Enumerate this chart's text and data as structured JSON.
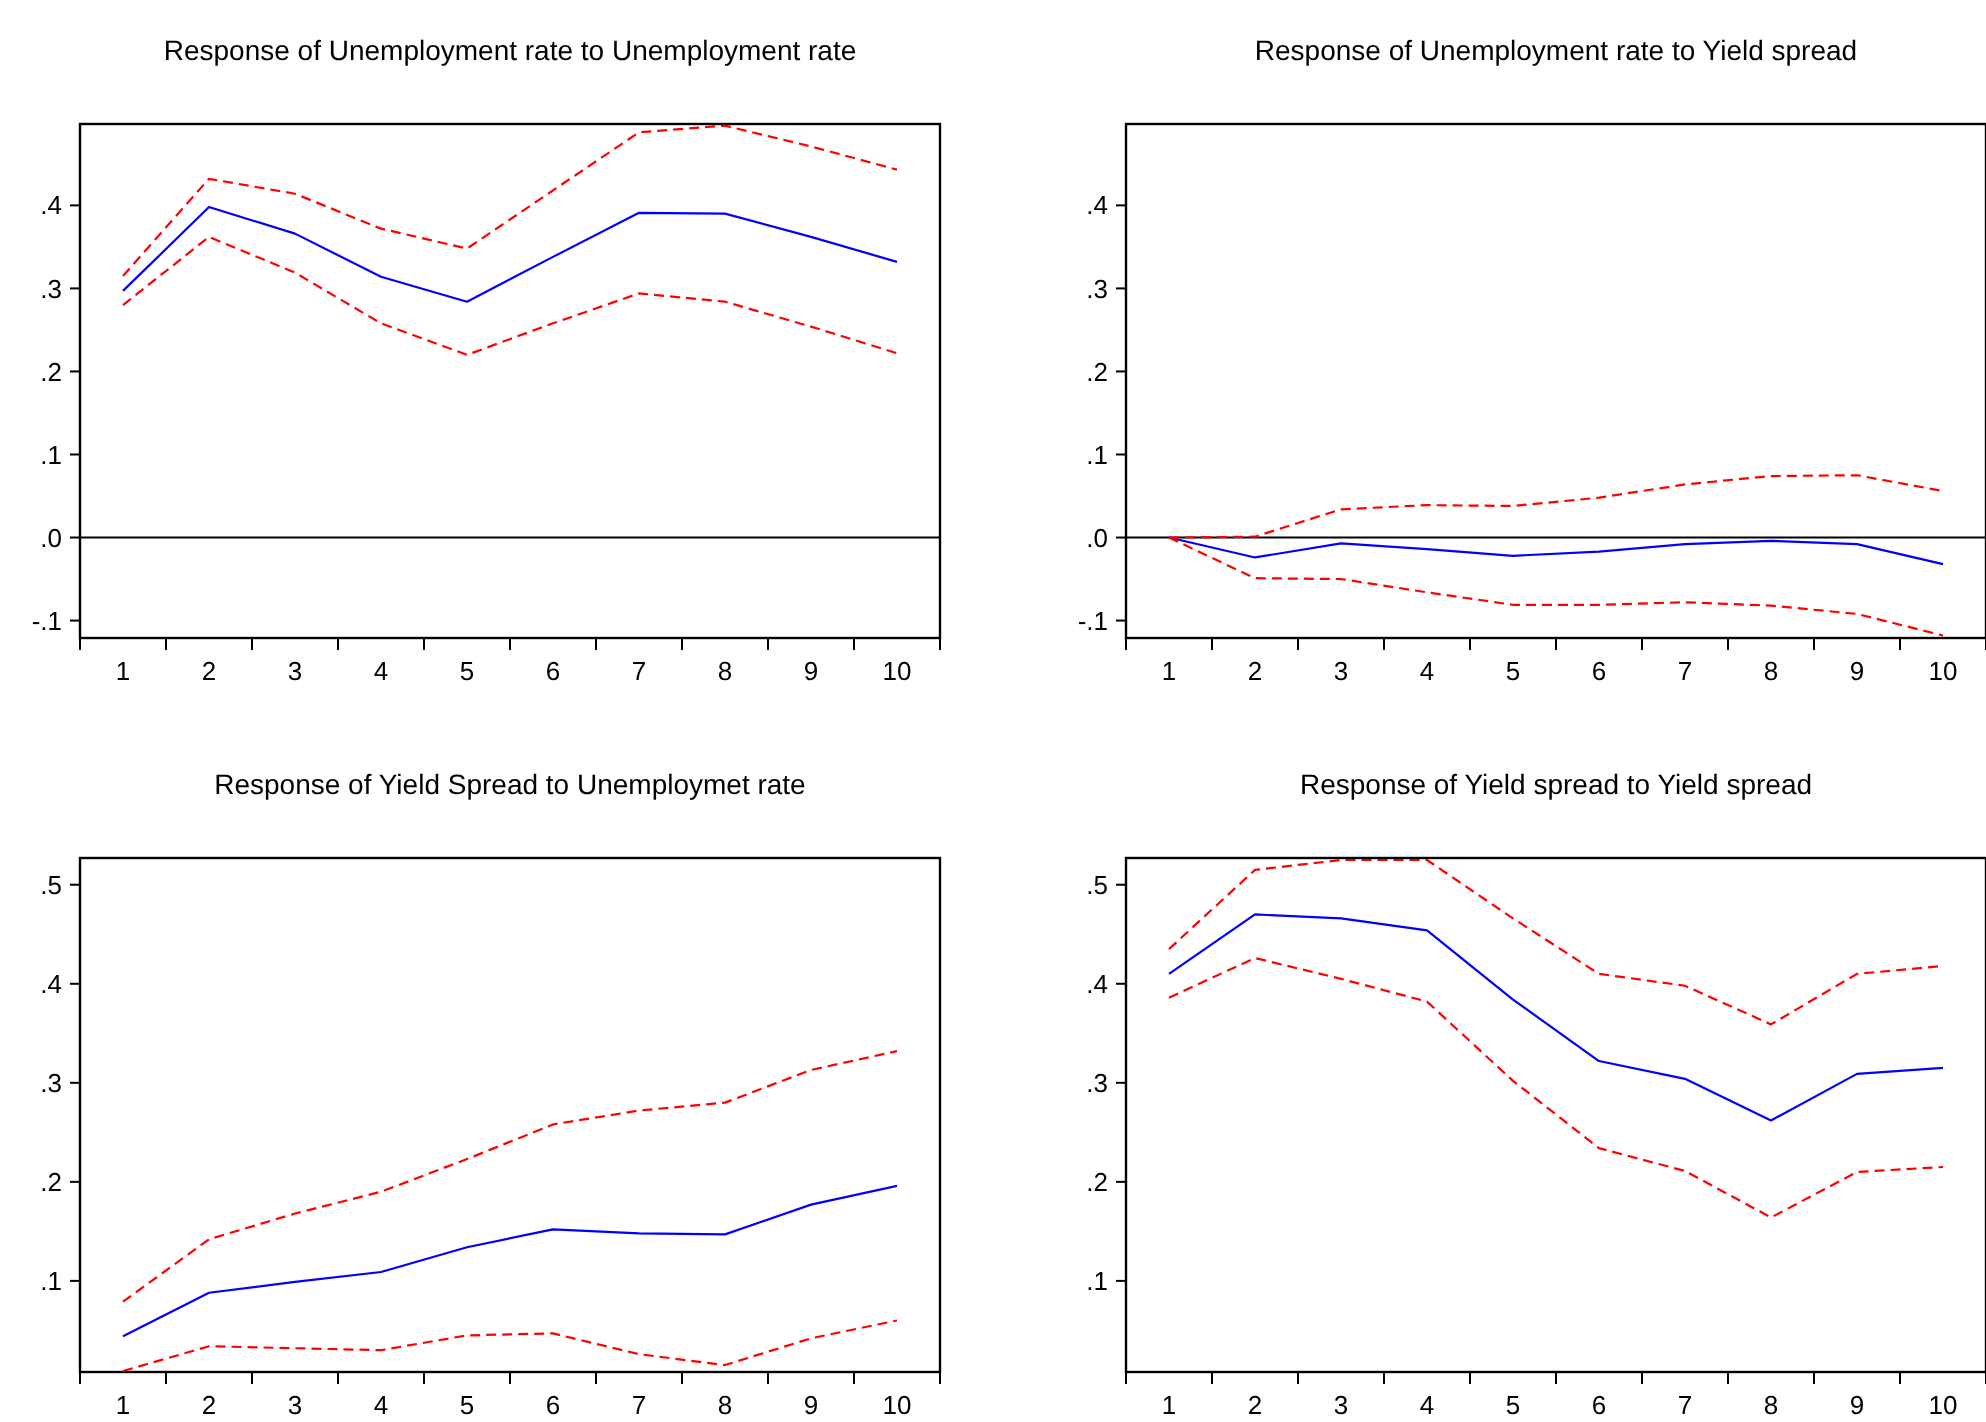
{
  "chart_data": [
    {
      "type": "line",
      "title": "Response of Unemployment rate to Unemployment rate",
      "categories": [
        "1",
        "2",
        "3",
        "4",
        "5",
        "6",
        "7",
        "8",
        "9",
        "10"
      ],
      "ylim": [
        -0.121,
        0.498
      ],
      "yticks": [
        {
          "value": -0.1,
          "label": "-.1"
        },
        {
          "value": 0,
          "label": ".0"
        },
        {
          "value": 0.1,
          "label": ".1"
        },
        {
          "value": 0.2,
          "label": ".2"
        },
        {
          "value": 0.3,
          "label": ".3"
        },
        {
          "value": 0.4,
          "label": ".4"
        }
      ],
      "ref_lines": [
        {
          "axis": "y",
          "value": 0,
          "color": "#000000"
        }
      ],
      "series": [
        {
          "color": "#0000ff",
          "line_style": "solid",
          "values": [
            0.297,
            0.398,
            0.366,
            0.314,
            0.284,
            0.338,
            0.391,
            0.39,
            0.362,
            0.332
          ]
        },
        {
          "color": "#ff0000",
          "line_style": "dashed",
          "values": [
            0.315,
            0.432,
            0.414,
            0.372,
            0.348,
            0.418,
            0.488,
            0.496,
            0.471,
            0.443
          ]
        },
        {
          "color": "#ff0000",
          "line_style": "dashed",
          "values": [
            0.28,
            0.362,
            0.319,
            0.258,
            0.22,
            0.258,
            0.294,
            0.284,
            0.254,
            0.222
          ]
        }
      ]
    },
    {
      "type": "line",
      "title": "Response of Unemployment rate to Yield spread",
      "categories": [
        "1",
        "2",
        "3",
        "4",
        "5",
        "6",
        "7",
        "8",
        "9",
        "10"
      ],
      "ylim": [
        -0.121,
        0.498
      ],
      "yticks": [
        {
          "value": -0.1,
          "label": "-.1"
        },
        {
          "value": 0,
          "label": ".0"
        },
        {
          "value": 0.1,
          "label": ".1"
        },
        {
          "value": 0.2,
          "label": ".2"
        },
        {
          "value": 0.3,
          "label": ".3"
        },
        {
          "value": 0.4,
          "label": ".4"
        }
      ],
      "ref_lines": [
        {
          "axis": "y",
          "value": 0,
          "color": "#000000"
        }
      ],
      "series": [
        {
          "color": "#0000ff",
          "line_style": "solid",
          "values": [
            0,
            -0.024,
            -0.007,
            -0.014,
            -0.022,
            -0.017,
            -0.008,
            -0.004,
            -0.008,
            -0.032
          ]
        },
        {
          "color": "#ff0000",
          "line_style": "dashed",
          "values": [
            0,
            0.001,
            0.034,
            0.039,
            0.038,
            0.048,
            0.064,
            0.074,
            0.075,
            0.056
          ]
        },
        {
          "color": "#ff0000",
          "line_style": "dashed",
          "values": [
            0,
            -0.049,
            -0.05,
            -0.066,
            -0.081,
            -0.081,
            -0.078,
            -0.082,
            -0.092,
            -0.118
          ]
        }
      ]
    },
    {
      "type": "line",
      "title": "Response of Yield Spread to Unemploymet rate",
      "categories": [
        "1",
        "2",
        "3",
        "4",
        "5",
        "6",
        "7",
        "8",
        "9",
        "10"
      ],
      "ylim": [
        0.008,
        0.527
      ],
      "yticks": [
        {
          "value": 0.1,
          "label": ".1"
        },
        {
          "value": 0.2,
          "label": ".2"
        },
        {
          "value": 0.3,
          "label": ".3"
        },
        {
          "value": 0.4,
          "label": ".4"
        },
        {
          "value": 0.5,
          "label": ".5"
        }
      ],
      "series": [
        {
          "color": "#0000ff",
          "line_style": "solid",
          "values": [
            0.044,
            0.088,
            0.099,
            0.109,
            0.134,
            0.152,
            0.148,
            0.147,
            0.177,
            0.196
          ]
        },
        {
          "color": "#ff0000",
          "line_style": "dashed",
          "values": [
            0.079,
            0.142,
            0.168,
            0.19,
            0.223,
            0.258,
            0.272,
            0.28,
            0.313,
            0.332
          ]
        },
        {
          "color": "#ff0000",
          "line_style": "dashed",
          "values": [
            0.009,
            0.034,
            0.032,
            0.03,
            0.045,
            0.047,
            0.026,
            0.015,
            0.042,
            0.06
          ]
        }
      ]
    },
    {
      "type": "line",
      "title": "Response of Yield spread to Yield spread",
      "categories": [
        "1",
        "2",
        "3",
        "4",
        "5",
        "6",
        "7",
        "8",
        "9",
        "10"
      ],
      "ylim": [
        0.008,
        0.527
      ],
      "yticks": [
        {
          "value": 0.1,
          "label": ".1"
        },
        {
          "value": 0.2,
          "label": ".2"
        },
        {
          "value": 0.3,
          "label": ".3"
        },
        {
          "value": 0.4,
          "label": ".4"
        },
        {
          "value": 0.5,
          "label": ".5"
        }
      ],
      "series": [
        {
          "color": "#0000ff",
          "line_style": "solid",
          "values": [
            0.41,
            0.47,
            0.466,
            0.454,
            0.384,
            0.322,
            0.304,
            0.262,
            0.309,
            0.315
          ]
        },
        {
          "color": "#ff0000",
          "line_style": "dashed",
          "values": [
            0.435,
            0.515,
            0.525,
            0.525,
            0.466,
            0.41,
            0.398,
            0.359,
            0.41,
            0.418
          ]
        },
        {
          "color": "#ff0000",
          "line_style": "dashed",
          "values": [
            0.386,
            0.426,
            0.405,
            0.382,
            0.302,
            0.234,
            0.211,
            0.164,
            0.21,
            0.215
          ]
        }
      ]
    }
  ]
}
